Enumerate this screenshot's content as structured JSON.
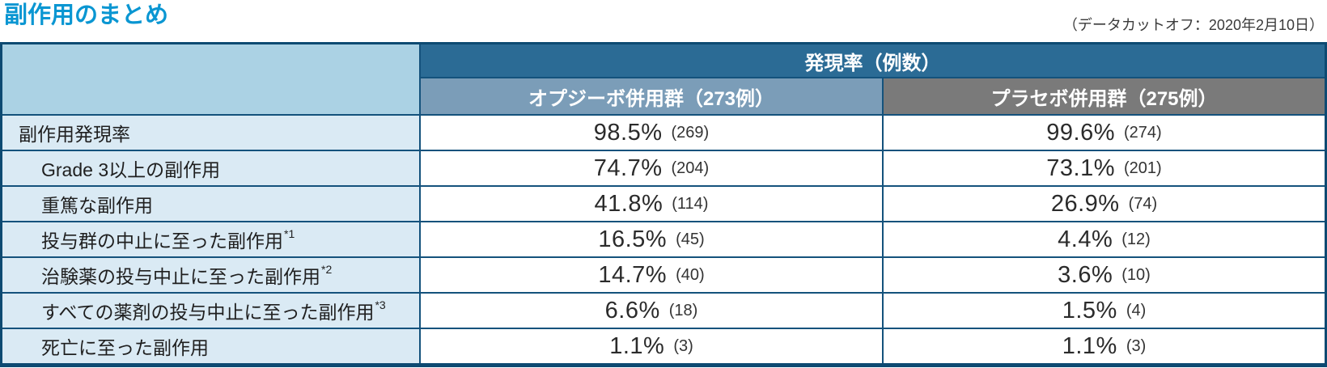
{
  "page": {
    "title": "副作用のまとめ",
    "data_cutoff": "（データカットオフ：2020年2月10日）"
  },
  "colors": {
    "title_accent": "#0a96d2",
    "table_border": "#0d4a72",
    "incidence_header_bg": "#2b6b95",
    "opdivo_header_bg": "#7b9db8",
    "placebo_header_bg": "#7a7a7a",
    "corner_cell_bg": "#abd2e4",
    "label_cell_bg": "#daeaf4",
    "value_cell_bg": "#ffffff"
  },
  "table": {
    "header": {
      "incidence_label": "発現率（例数）",
      "opdivo_group": "オプジーボ併用群（273例）",
      "placebo_group": "プラセボ併用群（275例）"
    },
    "rows": [
      {
        "label": "副作用発現率",
        "sup": "",
        "opdivo_pct": "98.5%",
        "opdivo_n": "(269)",
        "placebo_pct": "99.6%",
        "placebo_n": "(274)"
      },
      {
        "label": "Grade 3以上の副作用",
        "sup": "",
        "opdivo_pct": "74.7%",
        "opdivo_n": "(204)",
        "placebo_pct": "73.1%",
        "placebo_n": "(201)"
      },
      {
        "label": "重篤な副作用",
        "sup": "",
        "opdivo_pct": "41.8%",
        "opdivo_n": "(114)",
        "placebo_pct": "26.9%",
        "placebo_n": "(74)"
      },
      {
        "label": "投与群の中止に至った副作用",
        "sup": "*1",
        "opdivo_pct": "16.5%",
        "opdivo_n": "(45)",
        "placebo_pct": "4.4%",
        "placebo_n": "(12)"
      },
      {
        "label": "治験薬の投与中止に至った副作用",
        "sup": "*2",
        "opdivo_pct": "14.7%",
        "opdivo_n": "(40)",
        "placebo_pct": "3.6%",
        "placebo_n": "(10)"
      },
      {
        "label": "すべての薬剤の投与中止に至った副作用",
        "sup": "*3",
        "opdivo_pct": "6.6%",
        "opdivo_n": "(18)",
        "placebo_pct": "1.5%",
        "placebo_n": "(4)"
      },
      {
        "label": "死亡に至った副作用",
        "sup": "",
        "opdivo_pct": "1.1%",
        "opdivo_n": "(3)",
        "placebo_pct": "1.1%",
        "placebo_n": "(3)"
      }
    ]
  }
}
